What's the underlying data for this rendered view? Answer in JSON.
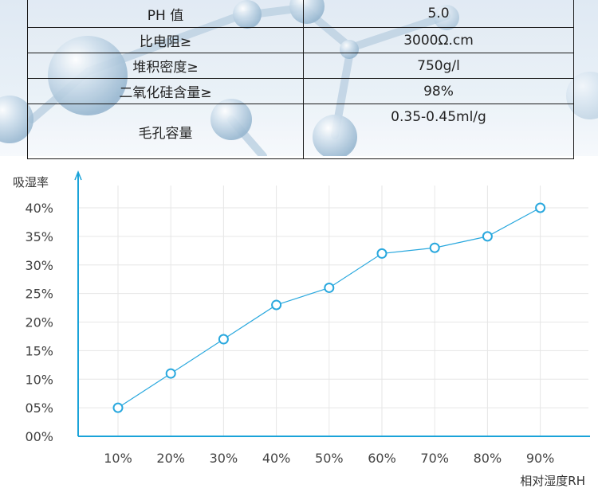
{
  "spec_table": {
    "rows": [
      {
        "name": "PH 值",
        "value": "5.0"
      },
      {
        "name": "比电阻≥",
        "value": "3000Ω.cm"
      },
      {
        "name": "堆积密度≥",
        "value": "750g/l"
      },
      {
        "name": "二氧化硅含量≥",
        "value": "98%"
      },
      {
        "name": "毛孔容量",
        "value": "0.35-0.45ml/g"
      }
    ]
  },
  "chart_data": {
    "type": "line",
    "ylabel": "吸湿率",
    "xlabel": "相对湿度RH",
    "x": [
      "10%",
      "20%",
      "30%",
      "40%",
      "50%",
      "60%",
      "70%",
      "80%",
      "90%"
    ],
    "series": [
      {
        "values": [
          5,
          11,
          17,
          23,
          26,
          32,
          33,
          35,
          40
        ]
      }
    ],
    "y_ticks": [
      "00%",
      "05%",
      "10%",
      "15%",
      "20%",
      "25%",
      "30%",
      "35%",
      "40%"
    ],
    "ylim": [
      0,
      40
    ],
    "grid": true,
    "colors": {
      "line": "#29a8de",
      "axis": "#1aa3d9",
      "grid": "#e6e6e6"
    }
  }
}
